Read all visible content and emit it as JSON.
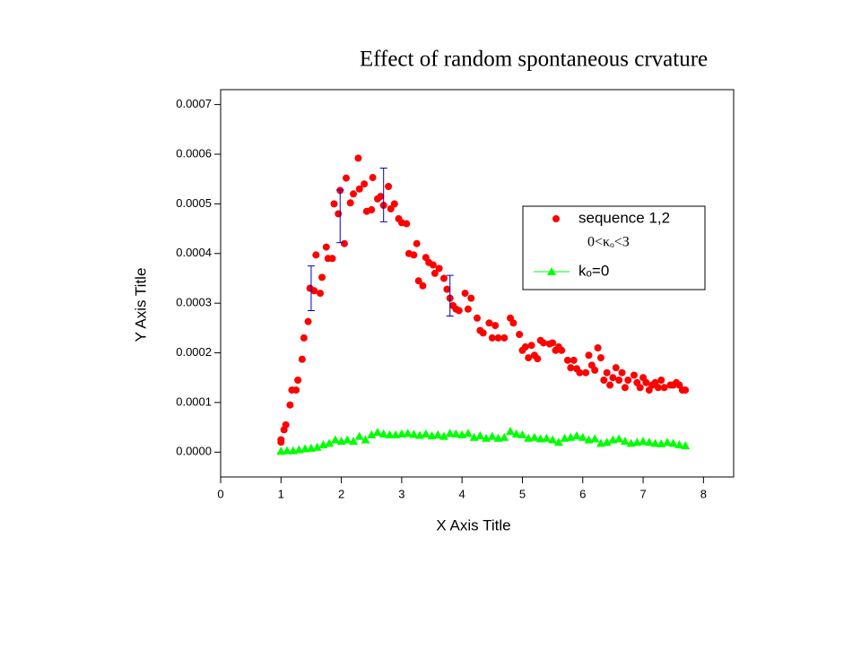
{
  "chart_data": {
    "type": "scatter",
    "title": "Effect of random spontaneous crvature",
    "x_label": "X Axis Title",
    "y_label": "Y Axis Title",
    "xlim": [
      0,
      8.5
    ],
    "ylim": [
      -5e-05,
      0.00073
    ],
    "xticks": [
      0,
      1,
      2,
      3,
      4,
      5,
      6,
      7,
      8
    ],
    "yticks": [
      {
        "value": 0,
        "label": "0.0000"
      },
      0.0001,
      0.0002,
      0.0003,
      0.0004,
      0.0005,
      0.0006,
      0.0007
    ],
    "legend_position": "upper right",
    "legend_note": "0<κₒ<3",
    "series": [
      {
        "name": "sequence 1,2",
        "color": "#ff0000",
        "marker": "circle",
        "x": [
          1.0,
          1.0,
          1.05,
          1.08,
          1.15,
          1.18,
          1.25,
          1.28,
          1.35,
          1.38,
          1.45,
          1.48,
          1.55,
          1.58,
          1.65,
          1.68,
          1.75,
          1.78,
          1.85,
          1.88,
          1.95,
          1.98,
          2.05,
          2.08,
          2.15,
          2.2,
          2.28,
          2.3,
          2.38,
          2.42,
          2.5,
          2.52,
          2.6,
          2.65,
          2.7,
          2.78,
          2.82,
          2.88,
          2.95,
          3.0,
          3.08,
          3.12,
          3.2,
          3.25,
          3.28,
          3.35,
          3.4,
          3.45,
          3.52,
          3.55,
          3.62,
          3.7,
          3.75,
          3.8,
          3.85,
          3.9,
          3.95,
          4.05,
          4.1,
          4.15,
          4.25,
          4.3,
          4.35,
          4.45,
          4.5,
          4.55,
          4.6,
          4.7,
          4.8,
          4.85,
          4.95,
          5.0,
          5.05,
          5.1,
          5.15,
          5.2,
          5.25,
          5.3,
          5.35,
          5.45,
          5.5,
          5.55,
          5.6,
          5.65,
          5.75,
          5.8,
          5.85,
          5.9,
          5.95,
          6.05,
          6.1,
          6.15,
          6.2,
          6.25,
          6.3,
          6.35,
          6.4,
          6.45,
          6.5,
          6.55,
          6.6,
          6.65,
          6.7,
          6.75,
          6.85,
          6.9,
          6.95,
          7.0,
          7.05,
          7.1,
          7.15,
          7.2,
          7.25,
          7.3,
          7.35,
          7.45,
          7.5,
          7.55,
          7.6,
          7.65,
          7.7
        ],
        "values": [
          2e-05,
          2.5e-05,
          4.5e-05,
          5.5e-05,
          9.5e-05,
          0.000125,
          0.000125,
          0.000145,
          0.000187,
          0.00023,
          0.000263,
          0.00033,
          0.000325,
          0.000397,
          0.00032,
          0.000352,
          0.000413,
          0.00039,
          0.00039,
          0.0005,
          0.00048,
          0.000527,
          0.00042,
          0.000552,
          0.000502,
          0.00052,
          0.000592,
          0.00053,
          0.00054,
          0.000485,
          0.000488,
          0.000553,
          0.00051,
          0.000515,
          0.000497,
          0.000535,
          0.00049,
          0.0005,
          0.00047,
          0.000462,
          0.00046,
          0.0004,
          0.000397,
          0.00042,
          0.000345,
          0.000335,
          0.000392,
          0.000382,
          0.000377,
          0.00036,
          0.00037,
          0.00035,
          0.000328,
          0.00031,
          0.000295,
          0.000288,
          0.000285,
          0.00032,
          0.000288,
          0.00031,
          0.00027,
          0.000245,
          0.00024,
          0.00026,
          0.00023,
          0.000255,
          0.00023,
          0.00023,
          0.00027,
          0.00026,
          0.000237,
          0.000205,
          0.000212,
          0.00019,
          0.000215,
          0.000195,
          0.000188,
          0.000225,
          0.00022,
          0.000218,
          0.00022,
          0.000205,
          0.000212,
          0.000205,
          0.000185,
          0.00017,
          0.000185,
          0.000168,
          0.00016,
          0.00016,
          0.000195,
          0.000175,
          0.000165,
          0.00021,
          0.00019,
          0.000145,
          0.00016,
          0.000135,
          0.00015,
          0.00017,
          0.000145,
          0.00016,
          0.00013,
          0.000145,
          0.000155,
          0.00014,
          0.00013,
          0.00015,
          0.00014,
          0.000125,
          0.000135,
          0.00014,
          0.00013,
          0.000145,
          0.00013,
          0.000135,
          0.000135,
          0.00014,
          0.000135,
          0.000125,
          0.000125
        ]
      },
      {
        "name": "kₒ=0",
        "color": "#00ff00",
        "marker": "triangle",
        "x": [
          1.0,
          1.1,
          1.2,
          1.3,
          1.4,
          1.5,
          1.6,
          1.7,
          1.8,
          1.9,
          2.0,
          2.1,
          2.2,
          2.3,
          2.4,
          2.5,
          2.6,
          2.7,
          2.8,
          2.9,
          3.0,
          3.1,
          3.2,
          3.3,
          3.4,
          3.5,
          3.6,
          3.7,
          3.8,
          3.9,
          4.0,
          4.1,
          4.2,
          4.3,
          4.4,
          4.5,
          4.6,
          4.7,
          4.8,
          4.9,
          5.0,
          5.1,
          5.2,
          5.3,
          5.4,
          5.5,
          5.6,
          5.7,
          5.8,
          5.9,
          6.0,
          6.1,
          6.2,
          6.3,
          6.4,
          6.5,
          6.6,
          6.7,
          6.8,
          6.9,
          7.0,
          7.1,
          7.2,
          7.3,
          7.4,
          7.5,
          7.6,
          7.7
        ],
        "values": [
          2e-06,
          3e-06,
          3e-06,
          5e-06,
          7e-06,
          8e-06,
          1e-05,
          1.5e-05,
          1.8e-05,
          2.5e-05,
          2.2e-05,
          2.5e-05,
          2.2e-05,
          3.2e-05,
          2.5e-05,
          3.5e-05,
          4e-05,
          3.7e-05,
          3.5e-05,
          3.5e-05,
          3.7e-05,
          3.8e-05,
          3.6e-05,
          3.4e-05,
          3.7e-05,
          3.3e-05,
          3.5e-05,
          3.2e-05,
          3.8e-05,
          3.7e-05,
          3.5e-05,
          3.8e-05,
          3e-05,
          3.3e-05,
          2.8e-05,
          3.2e-05,
          2.8e-05,
          3e-05,
          4.2e-05,
          3.7e-05,
          3.5e-05,
          2.8e-05,
          3e-05,
          2.7e-05,
          2.8e-05,
          2.5e-05,
          2e-05,
          2.8e-05,
          3e-05,
          3.3e-05,
          3e-05,
          2.5e-05,
          2.7e-05,
          1.8e-05,
          2e-05,
          2.5e-05,
          2.7e-05,
          2.2e-05,
          1.8e-05,
          2e-05,
          2.2e-05,
          2e-05,
          1.8e-05,
          1.7e-05,
          2e-05,
          1.8e-05,
          1.5e-05,
          1.3e-05
        ]
      }
    ],
    "error_bars": {
      "color": "#0000cc",
      "x": [
        1.5,
        1.98,
        2.7,
        3.8
      ],
      "y": [
        0.00033,
        0.000475,
        0.000518,
        0.000315
      ],
      "err": [
        4.5e-05,
        5.3e-05,
        5.4e-05,
        4.1e-05
      ]
    }
  }
}
